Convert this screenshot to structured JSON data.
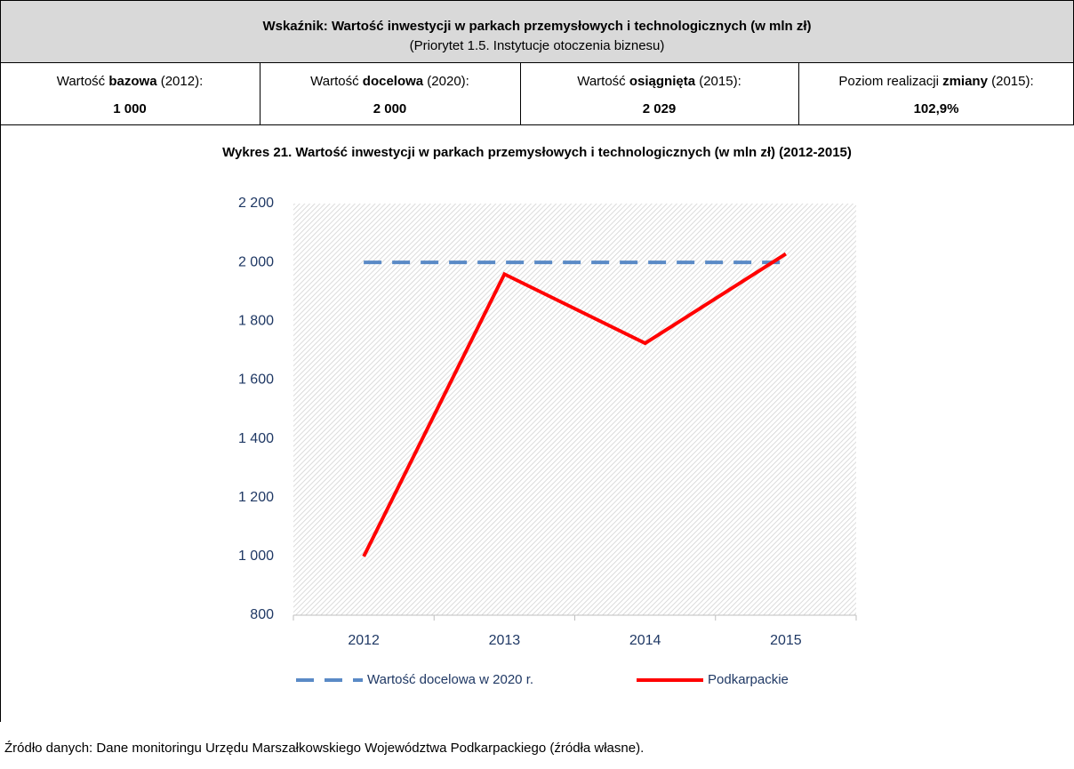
{
  "header": {
    "title": "Wskaźnik: Wartość inwestycji w parkach przemysłowych i technologicznych (w mln zł)",
    "subtitle": "(Priorytet 1.5. Instytucje otoczenia biznesu)",
    "cells": [
      {
        "label": [
          "Wartość ",
          "bazowa",
          " (2012):"
        ],
        "value": "1 000"
      },
      {
        "label": [
          "Wartość ",
          "docelowa",
          " (2020):"
        ],
        "value": "2 000"
      },
      {
        "label": [
          "Wartość ",
          "osiągnięta",
          " (2015):"
        ],
        "value": "2 029"
      },
      {
        "label": [
          "Poziom realizacji ",
          "zmiany",
          " (2015):"
        ],
        "value": "102,9%"
      }
    ]
  },
  "chart_data": {
    "type": "line",
    "title": "Wykres 21. Wartość inwestycji w parkach przemysłowych i technologicznych (w mln zł) (2012-2015)",
    "categories": [
      "2012",
      "2013",
      "2014",
      "2015"
    ],
    "series": [
      {
        "name": "Wartość docelowa w 2020 r.",
        "color": "#5a8ac6",
        "dashed": true,
        "values": [
          2000,
          2000,
          2000,
          2000
        ]
      },
      {
        "name": "Podkarpackie",
        "color": "#ff0000",
        "dashed": false,
        "values": [
          1000,
          1960,
          1725,
          2029
        ]
      }
    ],
    "ylim": [
      800,
      2200
    ],
    "yticks": [
      800,
      {
        "value": 1000,
        "label": "1 000"
      },
      {
        "value": 1200,
        "label": "1 200"
      },
      {
        "value": 1400,
        "label": "1 400"
      },
      {
        "value": 1600,
        "label": "1 600"
      },
      {
        "value": 1800,
        "label": "1 800"
      },
      {
        "value": 2000,
        "label": "2 000"
      },
      {
        "value": 2200,
        "label": "2 200"
      }
    ],
    "grid": false,
    "legend": "bottom"
  },
  "source": "Źródło danych: Dane monitoringu Urzędu Marszałkowskiego Województwa Podkarpackiego (źródła własne)."
}
